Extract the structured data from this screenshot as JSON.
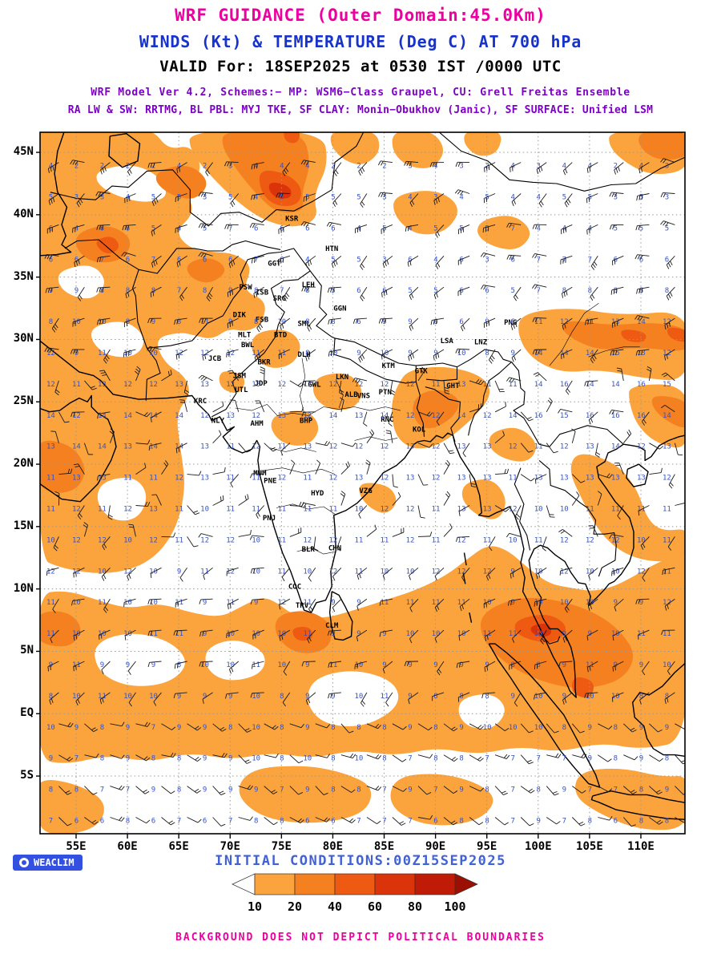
{
  "header": {
    "line1": "WRF GUIDANCE (Outer Domain:45.0Km)",
    "line2": "WINDS (Kt) & TEMPERATURE (Deg C) AT 700 hPa",
    "line3": "VALID For: 18SEP2025 at 0530 IST /0000 UTC",
    "line4": "WRF Model Ver 4.2, Schemes:− MP: WSM6−Class Graupel, CU: Grell Freitas Ensemble",
    "line5": "RA LW & SW: RRTMG, BL PBL: MYJ TKE, SF CLAY: Monin−Obukhov (Janic), SF SURFACE: Unified LSM"
  },
  "axes": {
    "lat": [
      {
        "label": "45N",
        "deg": 45
      },
      {
        "label": "40N",
        "deg": 40
      },
      {
        "label": "35N",
        "deg": 35
      },
      {
        "label": "30N",
        "deg": 30
      },
      {
        "label": "25N",
        "deg": 25
      },
      {
        "label": "20N",
        "deg": 20
      },
      {
        "label": "15N",
        "deg": 15
      },
      {
        "label": "10N",
        "deg": 10
      },
      {
        "label": "5N",
        "deg": 5
      },
      {
        "label": "EQ",
        "deg": 0
      },
      {
        "label": "5S",
        "deg": -5
      }
    ],
    "lon": [
      {
        "label": "55E",
        "deg": 55
      },
      {
        "label": "60E",
        "deg": 60
      },
      {
        "label": "65E",
        "deg": 65
      },
      {
        "label": "70E",
        "deg": 70
      },
      {
        "label": "75E",
        "deg": 75
      },
      {
        "label": "80E",
        "deg": 80
      },
      {
        "label": "85E",
        "deg": 85
      },
      {
        "label": "90E",
        "deg": 90
      },
      {
        "label": "95E",
        "deg": 95
      },
      {
        "label": "100E",
        "deg": 100
      },
      {
        "label": "105E",
        "deg": 105
      },
      {
        "label": "110E",
        "deg": 110
      }
    ]
  },
  "cities": [
    {
      "code": "KSR",
      "lon": 76.0,
      "lat": 39.5
    },
    {
      "code": "HTN",
      "lon": 79.9,
      "lat": 37.1
    },
    {
      "code": "GGT",
      "lon": 74.3,
      "lat": 35.9
    },
    {
      "code": "PSW",
      "lon": 71.5,
      "lat": 34.0
    },
    {
      "code": "ISB",
      "lon": 73.1,
      "lat": 33.6
    },
    {
      "code": "LEH",
      "lon": 77.6,
      "lat": 34.2
    },
    {
      "code": "SRG",
      "lon": 74.8,
      "lat": 33.1
    },
    {
      "code": "GGN",
      "lon": 80.7,
      "lat": 32.3
    },
    {
      "code": "DIK",
      "lon": 70.9,
      "lat": 31.8
    },
    {
      "code": "FSB",
      "lon": 73.1,
      "lat": 31.4
    },
    {
      "code": "MLT",
      "lon": 71.4,
      "lat": 30.2
    },
    {
      "code": "BTD",
      "lon": 74.9,
      "lat": 30.2
    },
    {
      "code": "SML",
      "lon": 77.2,
      "lat": 31.1
    },
    {
      "code": "BWL",
      "lon": 71.7,
      "lat": 29.4
    },
    {
      "code": "DLH",
      "lon": 77.2,
      "lat": 28.6
    },
    {
      "code": "BKR",
      "lon": 73.3,
      "lat": 28.0
    },
    {
      "code": "JCB",
      "lon": 68.5,
      "lat": 28.3
    },
    {
      "code": "JSM",
      "lon": 70.9,
      "lat": 26.9
    },
    {
      "code": "JDP",
      "lon": 73.0,
      "lat": 26.3
    },
    {
      "code": "UTL",
      "lon": 71.1,
      "lat": 25.8
    },
    {
      "code": "GWL",
      "lon": 78.2,
      "lat": 26.2
    },
    {
      "code": "LKN",
      "lon": 80.9,
      "lat": 26.8
    },
    {
      "code": "ALB",
      "lon": 81.8,
      "lat": 25.4
    },
    {
      "code": "KTM",
      "lon": 85.4,
      "lat": 27.7
    },
    {
      "code": "GTK",
      "lon": 88.6,
      "lat": 27.3
    },
    {
      "code": "GHT",
      "lon": 91.7,
      "lat": 26.1
    },
    {
      "code": "PNG",
      "lon": 97.3,
      "lat": 31.2
    },
    {
      "code": "LSA",
      "lon": 91.1,
      "lat": 29.7
    },
    {
      "code": "LNZ",
      "lon": 94.4,
      "lat": 29.6
    },
    {
      "code": "KRC",
      "lon": 67.1,
      "lat": 24.9
    },
    {
      "code": "NLY",
      "lon": 68.8,
      "lat": 23.3
    },
    {
      "code": "AHM",
      "lon": 72.6,
      "lat": 23.1
    },
    {
      "code": "BHP",
      "lon": 77.4,
      "lat": 23.3
    },
    {
      "code": "PTN",
      "lon": 85.1,
      "lat": 25.6
    },
    {
      "code": "VNS",
      "lon": 83.0,
      "lat": 25.3
    },
    {
      "code": "RNC",
      "lon": 85.3,
      "lat": 23.4
    },
    {
      "code": "KOL",
      "lon": 88.4,
      "lat": 22.6
    },
    {
      "code": "MUM",
      "lon": 72.9,
      "lat": 19.1
    },
    {
      "code": "PNE",
      "lon": 73.9,
      "lat": 18.5
    },
    {
      "code": "HYD",
      "lon": 78.5,
      "lat": 17.5
    },
    {
      "code": "VZG",
      "lon": 83.2,
      "lat": 17.7
    },
    {
      "code": "PNJ",
      "lon": 73.8,
      "lat": 15.5
    },
    {
      "code": "BLR",
      "lon": 77.6,
      "lat": 13.0
    },
    {
      "code": "CHN",
      "lon": 80.2,
      "lat": 13.1
    },
    {
      "code": "COC",
      "lon": 76.3,
      "lat": 10.0
    },
    {
      "code": "TRV",
      "lon": 77.0,
      "lat": 8.5
    },
    {
      "code": "CLM",
      "lon": 79.9,
      "lat": 6.9
    }
  ],
  "palette": {
    "orange1": "#FBA33C",
    "orange2": "#F58020",
    "red1": "#EE5A11",
    "red2": "#DB330A",
    "red3": "#BF1B06",
    "darkred": "#9C0F03",
    "temp_text": "#3353CC",
    "barb": "#1A1A1A",
    "grid_dot": "#999999",
    "title_magenta": "#ED009F",
    "title_blue": "#1733CC",
    "model_purple": "#7D00C8",
    "initial_blue": "#4161D6",
    "logo_blue": "#3350E0"
  },
  "legend": {
    "values": [
      "10",
      "20",
      "40",
      "60",
      "80",
      "100"
    ]
  },
  "wind_field": {
    "grid_step_deg": 2.5,
    "temp_peak_c": 13,
    "temp_peak_lat": 25,
    "north_lapse": 0.55,
    "south_lapse": 0.16,
    "temp_min": 0,
    "temp_max": 16
  },
  "footer": {
    "logo": "WEACLIM",
    "initial": "INITIAL CONDITIONS:00Z15SEP2025",
    "disclaimer": "BACKGROUND DOES NOT DEPICT POLITICAL BOUNDARIES"
  }
}
